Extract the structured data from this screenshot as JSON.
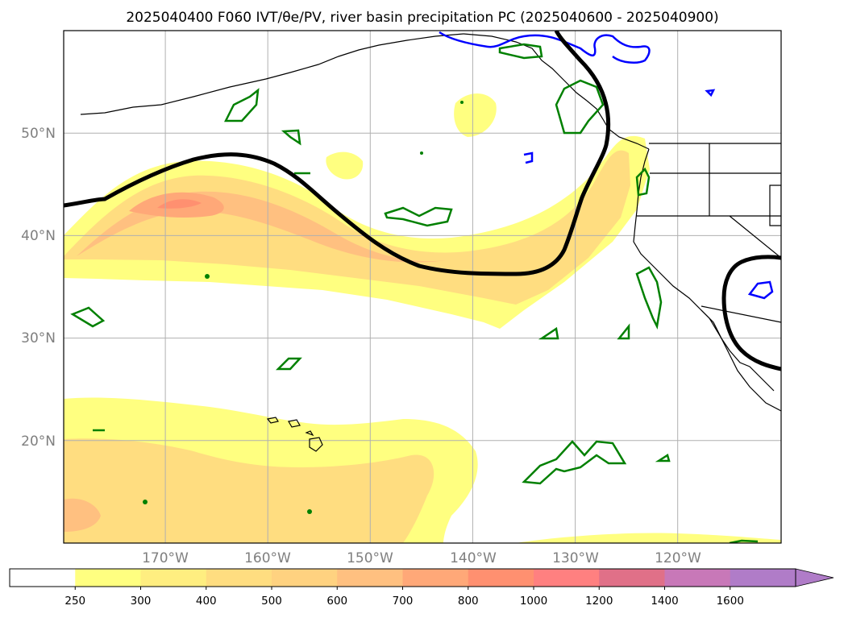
{
  "title": "2025040400 F060 IVT/θe/PV, river basin precipitation PC (2025040600 - 2025040900)",
  "map": {
    "lon_range": [
      -180,
      -110
    ],
    "lat_range": [
      10,
      60
    ],
    "lon_ticks": [
      {
        "value": -170,
        "label": "170°W"
      },
      {
        "value": -160,
        "label": "160°W"
      },
      {
        "value": -150,
        "label": "150°W"
      },
      {
        "value": -140,
        "label": "140°W"
      },
      {
        "value": -130,
        "label": "130°W"
      },
      {
        "value": -120,
        "label": "120°W"
      }
    ],
    "lat_ticks": [
      {
        "value": 50,
        "label": "50°N"
      },
      {
        "value": 40,
        "label": "40°N"
      },
      {
        "value": 30,
        "label": "30°N"
      },
      {
        "value": 20,
        "label": "20°N"
      }
    ],
    "grid": true
  },
  "colorbar": {
    "levels": [
      "250",
      "300",
      "400",
      "500",
      "600",
      "700",
      "800",
      "1000",
      "1200",
      "1400",
      "1600"
    ],
    "colors": [
      "#ffffff",
      "#ffff80",
      "#ffee80",
      "#ffdd80",
      "#ffd280",
      "#ffc080",
      "#ffa878",
      "#ff9070",
      "#ff8080",
      "#e07088",
      "#c878b8",
      "#b07cc8"
    ],
    "extend": "max"
  },
  "colors": {
    "pv_contour": "#008000",
    "theta_e_contour": "#0000ff",
    "ivt_contour": "#000000",
    "coastline": "#000000"
  }
}
